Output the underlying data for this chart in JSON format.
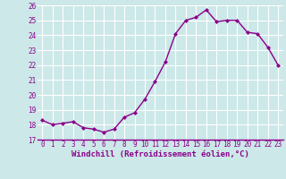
{
  "x": [
    0,
    1,
    2,
    3,
    4,
    5,
    6,
    7,
    8,
    9,
    10,
    11,
    12,
    13,
    14,
    15,
    16,
    17,
    18,
    19,
    20,
    21,
    22,
    23
  ],
  "y": [
    18.3,
    18.0,
    18.1,
    18.2,
    17.8,
    17.7,
    17.5,
    17.7,
    18.5,
    18.8,
    19.7,
    20.9,
    22.2,
    24.1,
    25.0,
    25.2,
    25.7,
    24.9,
    25.0,
    25.0,
    24.2,
    24.1,
    23.2,
    22.0
  ],
  "line_color": "#8b008b",
  "marker": "D",
  "marker_size": 2.0,
  "bg_color": "#cce8e8",
  "grid_color": "#ffffff",
  "xlabel": "Windchill (Refroidissement éolien,°C)",
  "ylim": [
    17,
    26
  ],
  "xlim": [
    -0.5,
    23.5
  ],
  "yticks": [
    17,
    18,
    19,
    20,
    21,
    22,
    23,
    24,
    25,
    26
  ],
  "xticks": [
    0,
    1,
    2,
    3,
    4,
    5,
    6,
    7,
    8,
    9,
    10,
    11,
    12,
    13,
    14,
    15,
    16,
    17,
    18,
    19,
    20,
    21,
    22,
    23
  ],
  "tick_fontsize": 5.5,
  "xlabel_fontsize": 6.5,
  "line_width": 1.0,
  "spine_color": "#8b008b"
}
